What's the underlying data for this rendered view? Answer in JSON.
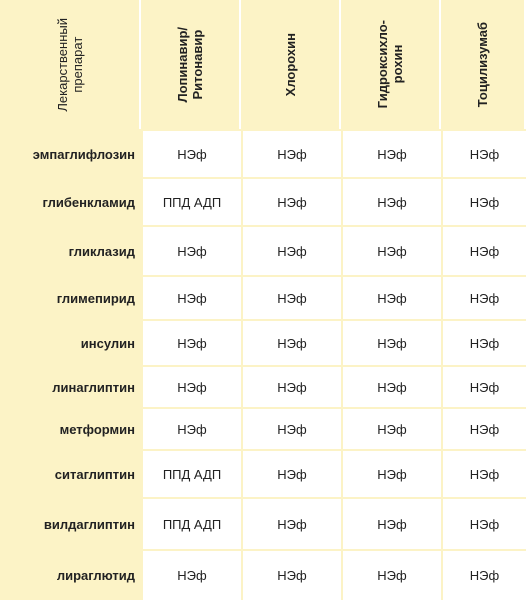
{
  "header": {
    "drug_label": "Лекарственный\nпрепарат",
    "columns": [
      "Лопинавир/\nРитонавир",
      "Хлорохин",
      "Гидроксихло-\nрохин",
      "Тоцилизумаб"
    ]
  },
  "rows": [
    {
      "drug": "эмпаглифлозин",
      "values": [
        "НЭф",
        "НЭф",
        "НЭф",
        "НЭф"
      ]
    },
    {
      "drug": "глибенкламид",
      "values": [
        "ППД АДП",
        "НЭф",
        "НЭф",
        "НЭф"
      ]
    },
    {
      "drug": "гликлазид",
      "values": [
        "НЭф",
        "НЭф",
        "НЭф",
        "НЭф"
      ]
    },
    {
      "drug": "глимепирид",
      "values": [
        "НЭф",
        "НЭф",
        "НЭф",
        "НЭф"
      ]
    },
    {
      "drug": "инсулин",
      "values": [
        "НЭф",
        "НЭф",
        "НЭф",
        "НЭф"
      ]
    },
    {
      "drug": "линаглиптин",
      "values": [
        "НЭф",
        "НЭф",
        "НЭф",
        "НЭф"
      ]
    },
    {
      "drug": "метформин",
      "values": [
        "НЭф",
        "НЭф",
        "НЭф",
        "НЭф"
      ]
    },
    {
      "drug": "ситаглиптин",
      "values": [
        "ППД АДП",
        "НЭф",
        "НЭф",
        "НЭф"
      ]
    },
    {
      "drug": "вилдаглиптин",
      "values": [
        "ППД АДП",
        "НЭф",
        "НЭф",
        "НЭф"
      ]
    },
    {
      "drug": "лираглютид",
      "values": [
        "НЭф",
        "НЭф",
        "НЭф",
        "НЭф"
      ]
    }
  ]
}
